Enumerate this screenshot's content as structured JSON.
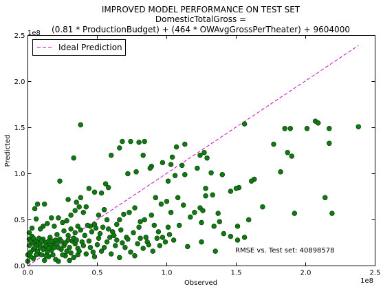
{
  "chart_data": {
    "type": "scatter",
    "title_lines": [
      "IMPROVED MODEL PERFORMANCE ON TEST SET",
      "DomesticTotalGross =",
      "(0.81 * ProductionBudget) + (464 * OWAvgGrossPerTheater) + 9604000"
    ],
    "xlabel": "Observed",
    "ylabel": "Predicted",
    "xlim": [
      0,
      2.5
    ],
    "ylim": [
      0,
      2.5
    ],
    "x_scale_label": "1e8",
    "y_scale_label": "1e8",
    "x_ticks": [
      {
        "value": 0.0,
        "label": "0.0"
      },
      {
        "value": 0.5,
        "label": "0.5"
      },
      {
        "value": 1.0,
        "label": "1.0"
      },
      {
        "value": 1.5,
        "label": "1.5"
      },
      {
        "value": 2.0,
        "label": "2.0"
      },
      {
        "value": 2.5,
        "label": "2.5"
      }
    ],
    "y_ticks": [
      {
        "value": 0.0,
        "label": "0.0"
      },
      {
        "value": 0.5,
        "label": "0.5"
      },
      {
        "value": 1.0,
        "label": "1.0"
      },
      {
        "value": 1.5,
        "label": "1.5"
      },
      {
        "value": 2.0,
        "label": "2.0"
      },
      {
        "value": 2.5,
        "label": "2.5"
      }
    ],
    "grid": false,
    "legend_position": "top-left",
    "annotation": "RMSE vs. Test set: 40898578",
    "series": [
      {
        "name": "Ideal Prediction",
        "kind": "line",
        "style": "dashed",
        "color": "#cc00cc",
        "x": [
          0.0,
          2.38
        ],
        "y": [
          0.0,
          2.39
        ]
      },
      {
        "kind": "scatter",
        "color": "#107a10",
        "edge_color": "#0a3d0a",
        "points": [
          [
            0.38,
            1.53
          ],
          [
            0.33,
            1.17
          ],
          [
            0.6,
            1.2
          ],
          [
            0.66,
            1.28
          ],
          [
            0.68,
            1.35
          ],
          [
            0.74,
            1.35
          ],
          [
            0.8,
            1.34
          ],
          [
            0.84,
            1.35
          ],
          [
            0.83,
            1.2
          ],
          [
            0.89,
            1.08
          ],
          [
            1.04,
            1.18
          ],
          [
            1.07,
            1.29
          ],
          [
            1.13,
            1.32
          ],
          [
            1.03,
            1.1
          ],
          [
            1.11,
            1.09
          ],
          [
            1.24,
            1.2
          ],
          [
            1.27,
            1.23
          ],
          [
            1.29,
            1.17
          ],
          [
            1.56,
            1.54
          ],
          [
            1.77,
            1.32
          ],
          [
            1.85,
            1.49
          ],
          [
            1.89,
            1.49
          ],
          [
            2.01,
            1.49
          ],
          [
            2.07,
            1.57
          ],
          [
            2.09,
            1.55
          ],
          [
            2.17,
            1.49
          ],
          [
            2.38,
            1.51
          ],
          [
            2.17,
            1.33
          ],
          [
            1.82,
            1.02
          ],
          [
            1.87,
            1.23
          ],
          [
            1.9,
            1.19
          ],
          [
            2.14,
            0.74
          ],
          [
            2.19,
            0.57
          ],
          [
            1.92,
            0.57
          ],
          [
            1.63,
            0.94
          ],
          [
            1.61,
            0.92
          ],
          [
            1.52,
            0.85
          ],
          [
            1.5,
            0.84
          ],
          [
            1.46,
            0.81
          ],
          [
            1.4,
            0.99
          ],
          [
            1.32,
            1.01
          ],
          [
            1.28,
            0.84
          ],
          [
            1.22,
            1.06
          ],
          [
            1.13,
            0.99
          ],
          [
            1.06,
            0.98
          ],
          [
            1.01,
            0.92
          ],
          [
            0.97,
            1.12
          ],
          [
            0.88,
            1.06
          ],
          [
            0.78,
            1.02
          ],
          [
            0.72,
            1.0
          ],
          [
            0.58,
            0.85
          ],
          [
            0.56,
            0.89
          ],
          [
            0.53,
            0.79
          ],
          [
            0.48,
            0.8
          ],
          [
            0.44,
            0.84
          ],
          [
            0.38,
            0.74
          ],
          [
            0.35,
            0.69
          ],
          [
            0.29,
            0.72
          ],
          [
            0.23,
            0.92
          ],
          [
            0.12,
            0.67
          ],
          [
            0.07,
            0.67
          ],
          [
            0.05,
            0.62
          ],
          [
            0.92,
            0.74
          ],
          [
            0.96,
            0.67
          ],
          [
            1.0,
            0.7
          ],
          [
            1.03,
            0.58
          ],
          [
            1.08,
            0.74
          ],
          [
            1.12,
            0.66
          ],
          [
            1.24,
            0.63
          ],
          [
            1.26,
            0.6
          ],
          [
            1.28,
            0.76
          ],
          [
            1.33,
            0.77
          ],
          [
            1.37,
            0.57
          ],
          [
            1.38,
            0.48
          ],
          [
            1.34,
            0.43
          ],
          [
            1.25,
            0.47
          ],
          [
            1.2,
            0.58
          ],
          [
            1.17,
            0.53
          ],
          [
            1.09,
            0.44
          ],
          [
            1.02,
            0.34
          ],
          [
            0.94,
            0.37
          ],
          [
            0.89,
            0.55
          ],
          [
            0.84,
            0.5
          ],
          [
            0.81,
            0.48
          ],
          [
            0.77,
            0.63
          ],
          [
            0.73,
            0.58
          ],
          [
            0.69,
            0.56
          ],
          [
            0.66,
            0.5
          ],
          [
            0.64,
            0.45
          ],
          [
            0.61,
            0.37
          ],
          [
            0.57,
            0.5
          ],
          [
            0.55,
            0.61
          ],
          [
            0.51,
            0.55
          ],
          [
            0.48,
            0.45
          ],
          [
            0.45,
            0.43
          ],
          [
            0.42,
            0.64
          ],
          [
            0.4,
            0.58
          ],
          [
            0.37,
            0.64
          ],
          [
            0.34,
            0.6
          ],
          [
            0.31,
            0.55
          ],
          [
            0.28,
            0.49
          ],
          [
            0.25,
            0.47
          ],
          [
            0.22,
            0.52
          ],
          [
            0.19,
            0.43
          ],
          [
            0.17,
            0.52
          ],
          [
            0.14,
            0.46
          ],
          [
            0.11,
            0.43
          ],
          [
            0.09,
            0.4
          ],
          [
            0.06,
            0.51
          ],
          [
            0.03,
            0.41
          ],
          [
            0.01,
            0.29
          ],
          [
            0.02,
            0.15
          ],
          [
            0.04,
            0.08
          ],
          [
            0.08,
            0.13
          ],
          [
            0.12,
            0.2
          ],
          [
            0.15,
            0.1
          ],
          [
            0.18,
            0.22
          ],
          [
            0.2,
            0.07
          ],
          [
            0.24,
            0.18
          ],
          [
            0.27,
            0.11
          ],
          [
            0.3,
            0.2
          ],
          [
            0.33,
            0.09
          ],
          [
            0.36,
            0.19
          ],
          [
            0.39,
            0.26
          ],
          [
            0.42,
            0.13
          ],
          [
            0.45,
            0.2
          ],
          [
            0.48,
            0.1
          ],
          [
            0.5,
            0.23
          ],
          [
            0.53,
            0.16
          ],
          [
            0.57,
            0.26
          ],
          [
            0.6,
            0.13
          ],
          [
            0.63,
            0.22
          ],
          [
            0.66,
            0.09
          ],
          [
            0.7,
            0.2
          ],
          [
            0.74,
            0.15
          ],
          [
            0.79,
            0.24
          ],
          [
            0.83,
            0.19
          ],
          [
            0.86,
            0.26
          ],
          [
            0.9,
            0.16
          ],
          [
            0.95,
            0.22
          ],
          [
            0.99,
            0.26
          ],
          [
            1.05,
            0.28
          ],
          [
            1.15,
            0.21
          ],
          [
            1.25,
            0.26
          ],
          [
            1.35,
            0.16
          ],
          [
            1.46,
            0.32
          ],
          [
            1.51,
            0.43
          ],
          [
            1.56,
            0.31
          ],
          [
            1.51,
            0.28
          ],
          [
            1.59,
            0.5
          ],
          [
            1.69,
            0.64
          ],
          [
            1.41,
            0.35
          ],
          [
            0.01,
            0.36
          ],
          [
            0.03,
            0.32
          ],
          [
            0.05,
            0.27
          ],
          [
            0.07,
            0.24
          ],
          [
            0.09,
            0.2
          ],
          [
            0.11,
            0.29
          ],
          [
            0.13,
            0.25
          ],
          [
            0.16,
            0.31
          ],
          [
            0.19,
            0.27
          ],
          [
            0.21,
            0.34
          ],
          [
            0.23,
            0.29
          ],
          [
            0.26,
            0.38
          ],
          [
            0.29,
            0.33
          ],
          [
            0.31,
            0.4
          ],
          [
            0.34,
            0.36
          ],
          [
            0.36,
            0.43
          ],
          [
            0.38,
            0.39
          ],
          [
            0.41,
            0.33
          ],
          [
            0.43,
            0.44
          ],
          [
            0.46,
            0.37
          ],
          [
            0.49,
            0.41
          ],
          [
            0.52,
            0.35
          ],
          [
            0.54,
            0.42
          ],
          [
            0.58,
            0.4
          ],
          [
            0.62,
            0.33
          ],
          [
            0.67,
            0.39
          ],
          [
            0.71,
            0.31
          ],
          [
            0.76,
            0.36
          ],
          [
            0.8,
            0.42
          ],
          [
            0.85,
            0.31
          ],
          [
            0.91,
            0.44
          ],
          [
            0.97,
            0.31
          ],
          [
            1.01,
            0.42
          ],
          [
            0.0,
            0.05
          ],
          [
            0.02,
            0.1
          ],
          [
            0.04,
            0.18
          ],
          [
            0.06,
            0.22
          ],
          [
            0.08,
            0.26
          ],
          [
            0.1,
            0.12
          ],
          [
            0.12,
            0.06
          ],
          [
            0.14,
            0.15
          ],
          [
            0.16,
            0.24
          ],
          [
            0.18,
            0.12
          ],
          [
            0.2,
            0.28
          ],
          [
            0.22,
            0.05
          ],
          [
            0.24,
            0.27
          ],
          [
            0.26,
            0.22
          ],
          [
            0.28,
            0.16
          ],
          [
            0.3,
            0.06
          ],
          [
            0.32,
            0.27
          ],
          [
            0.34,
            0.24
          ],
          [
            0.36,
            0.12
          ],
          [
            0.01,
            0.22
          ],
          [
            0.03,
            0.25
          ],
          [
            0.05,
            0.2
          ],
          [
            0.07,
            0.16
          ],
          [
            0.09,
            0.24
          ],
          [
            0.11,
            0.18
          ],
          [
            0.13,
            0.22
          ],
          [
            0.15,
            0.27
          ],
          [
            0.17,
            0.17
          ],
          [
            0.19,
            0.2
          ],
          [
            0.21,
            0.24
          ],
          [
            0.0,
            0.12
          ],
          [
            0.02,
            0.27
          ],
          [
            0.04,
            0.3
          ],
          [
            0.06,
            0.12
          ],
          [
            0.08,
            0.3
          ],
          [
            0.1,
            0.27
          ],
          [
            0.13,
            0.11
          ],
          [
            0.15,
            0.19
          ],
          [
            0.17,
            0.27
          ],
          [
            0.22,
            0.2
          ],
          [
            0.25,
            0.12
          ],
          [
            0.27,
            0.25
          ],
          [
            0.29,
            0.28
          ],
          [
            0.31,
            0.14
          ],
          [
            0.33,
            0.3
          ],
          [
            0.35,
            0.28
          ],
          [
            0.37,
            0.16
          ],
          [
            0.4,
            0.22
          ],
          [
            0.44,
            0.27
          ],
          [
            0.47,
            0.15
          ],
          [
            0.51,
            0.3
          ],
          [
            0.55,
            0.2
          ],
          [
            0.59,
            0.31
          ],
          [
            0.64,
            0.28
          ],
          [
            0.68,
            0.25
          ],
          [
            0.72,
            0.29
          ],
          [
            0.77,
            0.11
          ],
          [
            0.81,
            0.3
          ],
          [
            0.87,
            0.23
          ],
          [
            0.93,
            0.3
          ]
        ]
      }
    ]
  }
}
